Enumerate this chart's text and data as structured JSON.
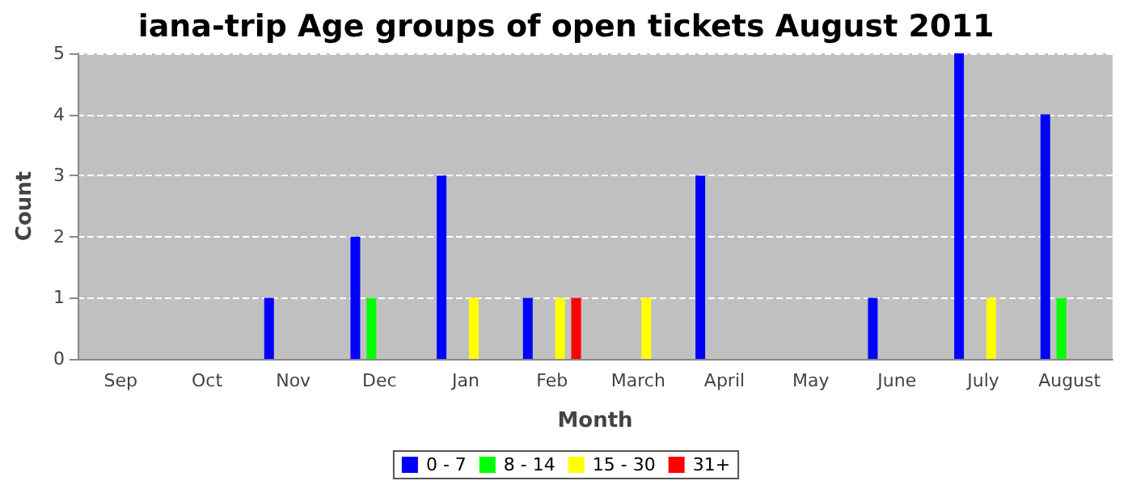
{
  "chart_data": {
    "type": "bar",
    "title": "iana-trip Age groups of open tickets August 2011",
    "xlabel": "Month",
    "ylabel": "Count",
    "categories": [
      "Sep",
      "Oct",
      "Nov",
      "Dec",
      "Jan",
      "Feb",
      "March",
      "April",
      "May",
      "June",
      "July",
      "August"
    ],
    "series": [
      {
        "name": "0 - 7",
        "color": "#0000ff",
        "values": [
          0,
          0,
          1,
          2,
          3,
          1,
          0,
          3,
          0,
          1,
          5,
          4
        ]
      },
      {
        "name": "8 - 14",
        "color": "#00ff00",
        "values": [
          0,
          0,
          0,
          1,
          0,
          0,
          0,
          0,
          0,
          0,
          0,
          1
        ]
      },
      {
        "name": "15 - 30",
        "color": "#ffff00",
        "values": [
          0,
          0,
          0,
          0,
          1,
          1,
          1,
          0,
          0,
          0,
          1,
          0
        ]
      },
      {
        "name": "31+",
        "color": "#ff0000",
        "values": [
          0,
          0,
          0,
          0,
          0,
          1,
          0,
          0,
          0,
          0,
          0,
          0
        ]
      }
    ],
    "ylim": [
      0,
      5
    ],
    "yticks": [
      0,
      1,
      2,
      3,
      4,
      5
    ],
    "grid": "y",
    "legend": "bottom"
  }
}
